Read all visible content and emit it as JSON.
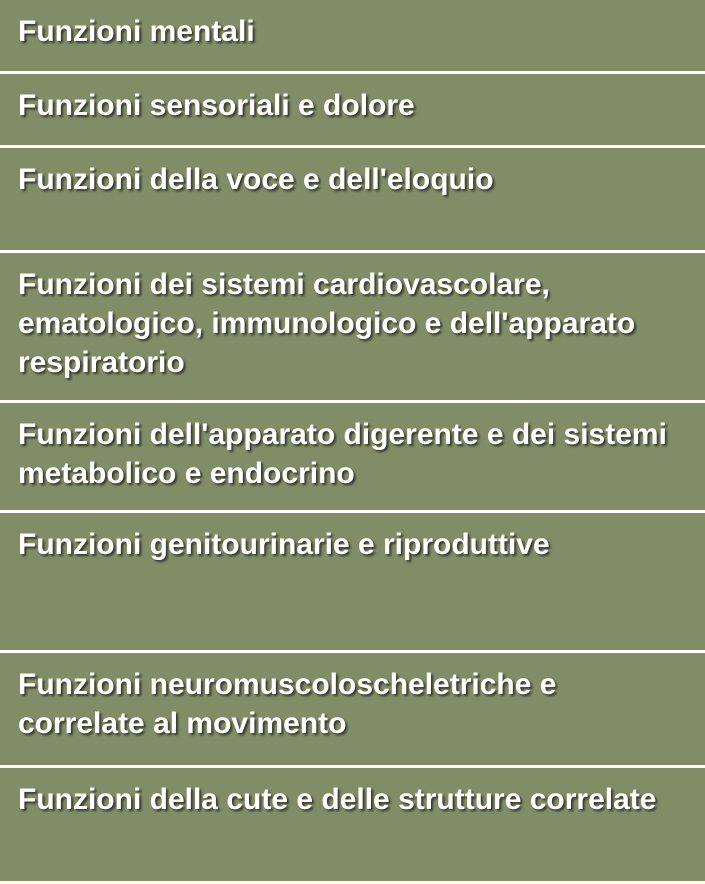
{
  "table": {
    "type": "table",
    "background_color": "#808d67",
    "divider_color": "#ffffff",
    "divider_width": 3,
    "text_color": "#ffffff",
    "font_size": 30,
    "font_weight": "bold",
    "text_shadow": "2px 2px 2px rgba(0,0,0,0.6)",
    "rows": [
      {
        "label": "Funzioni mentali"
      },
      {
        "label": "Funzioni sensoriali e dolore"
      },
      {
        "label": "Funzioni della voce e dell'eloquio"
      },
      {
        "label": "Funzioni dei sistemi cardiovascolare, ematologico, immunologico e dell'apparato respiratorio"
      },
      {
        "label": "Funzioni dell'apparato digerente e dei sistemi metabolico e endocrino"
      },
      {
        "label": "Funzioni genitourinarie e riproduttive"
      },
      {
        "label": "Funzioni neuromuscoloscheletriche e correlate al movimento"
      },
      {
        "label": "Funzioni della cute e delle strutture correlate"
      }
    ]
  }
}
